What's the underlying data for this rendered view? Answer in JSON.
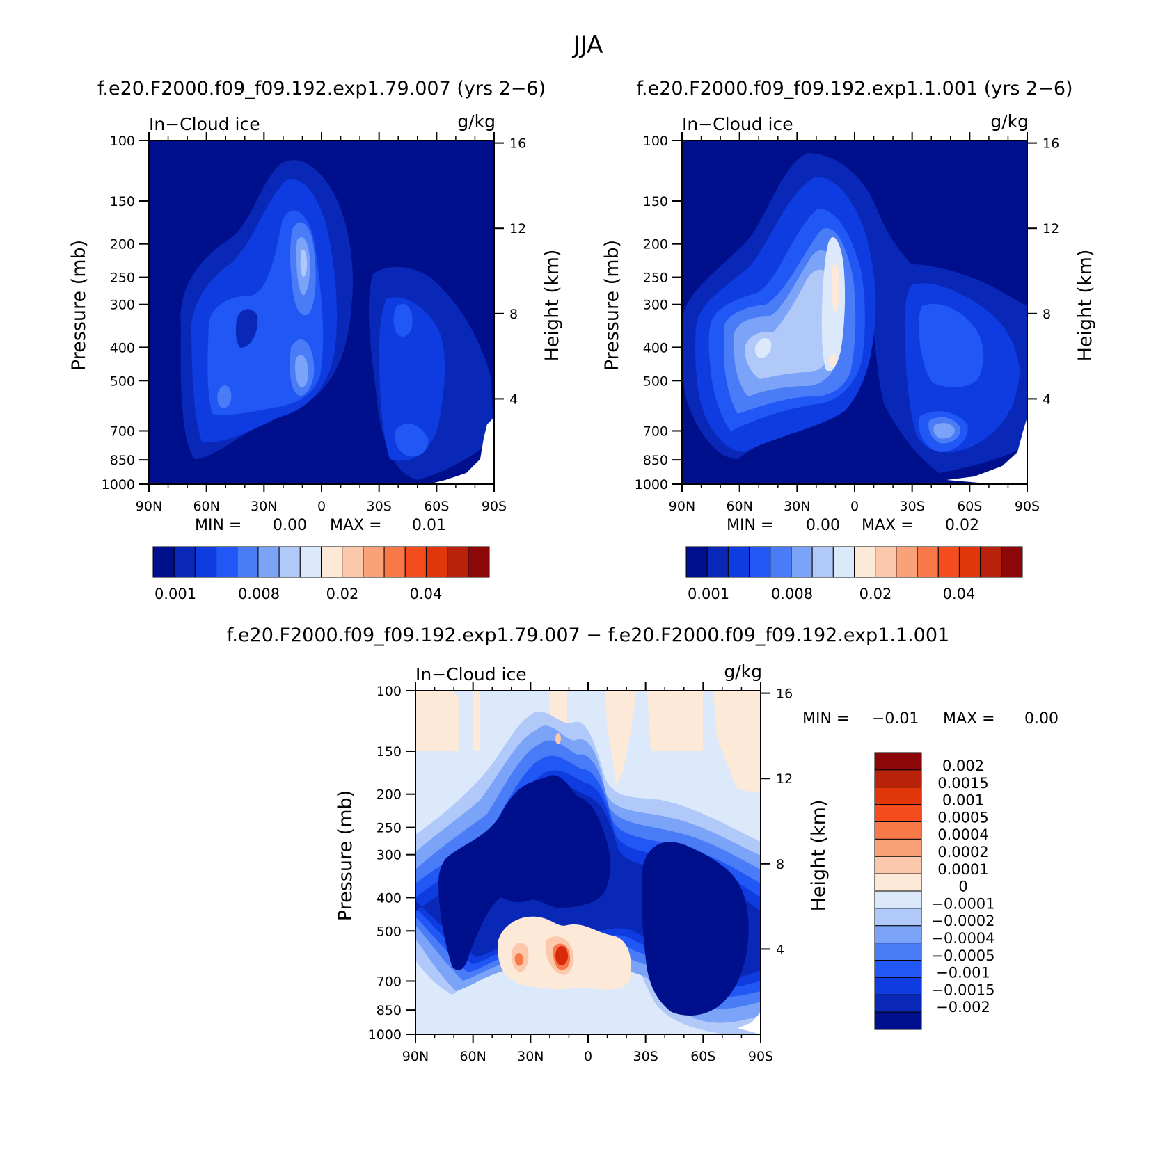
{
  "figure": {
    "title": "JJA"
  },
  "panels": [
    {
      "id": "exp79",
      "title": "f.e20.F2000.f09_f09.192.exp1.79.007 (yrs 2−6)",
      "field_label": "In−Cloud ice",
      "units_label": "g/kg",
      "min_text": "MIN =",
      "min_value": "0.00",
      "max_text": "MAX =",
      "max_value": "0.01",
      "colorbar_labels": [
        "0.001",
        "0.008",
        "0.02",
        "0.04"
      ]
    },
    {
      "id": "exp1",
      "title": "f.e20.F2000.f09_f09.192.exp1.1.001 (yrs 2−6)",
      "field_label": "In−Cloud ice",
      "units_label": "g/kg",
      "min_text": "MIN =",
      "min_value": "0.00",
      "max_text": "MAX =",
      "max_value": "0.02",
      "colorbar_labels": [
        "0.001",
        "0.008",
        "0.02",
        "0.04"
      ]
    },
    {
      "id": "diff",
      "title": "f.e20.F2000.f09_f09.192.exp1.79.007 − f.e20.F2000.f09_f09.192.exp1.1.001",
      "field_label": "In−Cloud ice",
      "units_label": "g/kg",
      "min_text": "MIN =",
      "min_value": "−0.01",
      "max_text": "MAX =",
      "max_value": "0.00",
      "colorbar_labels": [
        "0.002",
        "0.0015",
        "0.001",
        "0.0005",
        "0.0004",
        "0.0002",
        "0.0001",
        "0",
        "−0.0001",
        "−0.0002",
        "−0.0004",
        "−0.0005",
        "−0.001",
        "−0.0015",
        "−0.002"
      ]
    }
  ],
  "axes": {
    "y_left_title": "Pressure (mb)",
    "y_right_title": "Height (km)",
    "pressure_ticks": [
      "100",
      "150",
      "200",
      "250",
      "300",
      "400",
      "500",
      "700",
      "850",
      "1000"
    ],
    "height_ticks": [
      "16",
      "12",
      "8",
      "4"
    ],
    "lat_ticks": [
      "90N",
      "60N",
      "30N",
      "0",
      "30S",
      "60S",
      "90S"
    ]
  },
  "colormap": [
    "#000f8c",
    "#0a28b8",
    "#0f3ce0",
    "#2157f5",
    "#4a7cf7",
    "#7ba3f7",
    "#b0c9f9",
    "#dbe9fb",
    "#fde9d8",
    "#fcc8ac",
    "#f9a27a",
    "#f87848",
    "#f44c1c",
    "#e0360a",
    "#b8220a",
    "#8c0808"
  ],
  "chart_data": [
    {
      "type": "heatmap",
      "title": "f.e20.F2000.f09_f09.192.exp1.79.007 (yrs 2−6)",
      "xlabel": "",
      "ylabel": "Pressure (mb)",
      "y2label": "Height (km)",
      "x_range": [
        90,
        -90
      ],
      "y_range": [
        1000,
        100
      ],
      "y_scale": "log",
      "contour_levels": [
        0,
        0.001,
        0.002,
        0.004,
        0.006,
        0.008,
        0.01,
        0.015,
        0.02,
        0.025,
        0.03,
        0.035,
        0.04,
        0.045,
        0.05,
        0.055
      ],
      "features": [
        {
          "lat": 12,
          "p": 220,
          "value": 0.008
        },
        {
          "lat": 35,
          "p": 380,
          "value": 0.004
        },
        {
          "lat": 10,
          "p": 510,
          "value": 0.008
        },
        {
          "lat": -40,
          "p": 800,
          "value": 0.004
        },
        {
          "lat": -35,
          "p": 350,
          "value": 0.002
        }
      ],
      "min": 0.0,
      "max": 0.01
    },
    {
      "type": "heatmap",
      "title": "f.e20.F2000.f09_f09.192.exp1.1.001 (yrs 2−6)",
      "xlabel": "",
      "ylabel": "Pressure (mb)",
      "y2label": "Height (km)",
      "x_range": [
        90,
        -90
      ],
      "y_range": [
        1000,
        100
      ],
      "y_scale": "log",
      "contour_levels": [
        0,
        0.001,
        0.002,
        0.004,
        0.006,
        0.008,
        0.01,
        0.015,
        0.02,
        0.025,
        0.03,
        0.035,
        0.04,
        0.045,
        0.05,
        0.055
      ],
      "features": [
        {
          "lat": 10,
          "p": 260,
          "value": 0.015
        },
        {
          "lat": 50,
          "p": 380,
          "value": 0.008
        },
        {
          "lat": 10,
          "p": 460,
          "value": 0.015
        },
        {
          "lat": -47,
          "p": 780,
          "value": 0.01
        },
        {
          "lat": -40,
          "p": 400,
          "value": 0.004
        }
      ],
      "min": 0.0,
      "max": 0.02
    },
    {
      "type": "heatmap",
      "title": "f.e20.F2000.f09_f09.192.exp1.79.007 − f.e20.F2000.f09_f09.192.exp1.1.001",
      "xlabel": "",
      "ylabel": "Pressure (mb)",
      "y2label": "Height (km)",
      "x_range": [
        90,
        -90
      ],
      "y_range": [
        1000,
        100
      ],
      "y_scale": "log",
      "contour_levels": [
        -0.002,
        -0.0015,
        -0.001,
        -0.0005,
        -0.0004,
        -0.0002,
        -0.0001,
        0,
        0.0001,
        0.0002,
        0.0004,
        0.0005,
        0.001,
        0.0015,
        0.002
      ],
      "features": [
        {
          "lat": 22,
          "p": 280,
          "value": -0.002
        },
        {
          "lat": -50,
          "p": 500,
          "value": -0.002
        },
        {
          "lat": 13,
          "p": 600,
          "value": 0.0015
        },
        {
          "lat": 37,
          "p": 610,
          "value": 0.0005
        },
        {
          "lat": 20,
          "p": 700,
          "value": 0.0001
        }
      ],
      "min": -0.01,
      "max": 0.0
    }
  ]
}
